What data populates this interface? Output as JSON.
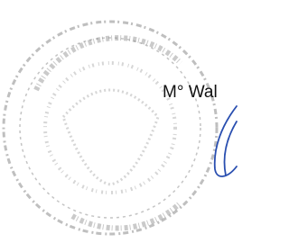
{
  "signature_block": {
    "name": "M° Wal"
  }
}
